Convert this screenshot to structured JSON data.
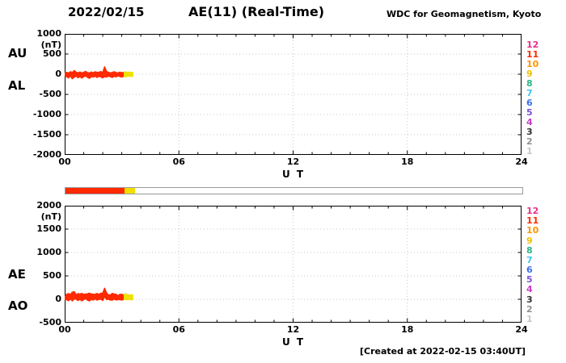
{
  "header": {
    "date": "2022/02/15",
    "title": "AE(11) (Real-Time)",
    "source": "WDC for Geomagnetism, Kyoto"
  },
  "footer": {
    "created": "[Created at 2022-02-15 03:40UT]"
  },
  "stations": [
    {
      "label": "12",
      "color": "#e8308a"
    },
    {
      "label": "11",
      "color": "#ff2a00"
    },
    {
      "label": "10",
      "color": "#ff9500"
    },
    {
      "label": "9",
      "color": "#f0c000"
    },
    {
      "label": "8",
      "color": "#2eb488"
    },
    {
      "label": "7",
      "color": "#3cc6f0"
    },
    {
      "label": "6",
      "color": "#3b6ff0"
    },
    {
      "label": "5",
      "color": "#7b52d8"
    },
    {
      "label": "4",
      "color": "#c83cc8"
    },
    {
      "label": "3",
      "color": "#303030"
    },
    {
      "label": "2",
      "color": "#909090"
    },
    {
      "label": "1",
      "color": "#c8c8c8"
    }
  ],
  "status_bar": {
    "total_hours": 24,
    "segments": [
      {
        "start": 0,
        "end": 3.1,
        "color": "#ff2a00"
      },
      {
        "start": 3.1,
        "end": 3.67,
        "color": "#f0e000"
      }
    ]
  },
  "chart_data": [
    {
      "type": "line",
      "panel": "AU / AL indices",
      "left_labels": [
        "AU",
        "AL"
      ],
      "unit": "(nT)",
      "xlabel": "U T",
      "x_ticks": [
        "00",
        "06",
        "12",
        "18",
        "24"
      ],
      "xlim": [
        0,
        24
      ],
      "ylim": [
        -2000,
        1000
      ],
      "y_ticks": [
        1000,
        500,
        0,
        -500,
        -1000,
        -1500,
        -2000
      ],
      "grid": "dotted",
      "recent_color": "#f0e000",
      "recent_from": 3.1,
      "x": [
        0,
        0.1,
        0.2,
        0.3,
        0.4,
        0.5,
        0.6,
        0.7,
        0.8,
        0.9,
        1.0,
        1.1,
        1.2,
        1.3,
        1.4,
        1.5,
        1.6,
        1.7,
        1.8,
        1.9,
        2.0,
        2.1,
        2.2,
        2.3,
        2.4,
        2.5,
        2.6,
        2.7,
        2.8,
        2.9,
        3.0,
        3.1,
        3.2,
        3.3,
        3.4,
        3.5,
        3.6
      ],
      "series": [
        {
          "name": "AU",
          "color": "#ff2a00",
          "values": [
            20,
            45,
            30,
            60,
            40,
            90,
            50,
            35,
            55,
            30,
            45,
            70,
            40,
            30,
            55,
            35,
            60,
            45,
            50,
            65,
            40,
            180,
            60,
            50,
            30,
            45,
            60,
            40,
            30,
            50,
            35,
            45,
            55,
            40,
            50,
            35,
            45
          ]
        },
        {
          "name": "AL",
          "color": "#ff2a00",
          "values": [
            -25,
            -60,
            -90,
            -40,
            -110,
            -70,
            -45,
            -85,
            -55,
            -95,
            -60,
            -40,
            -75,
            -100,
            -55,
            -70,
            -45,
            -80,
            -50,
            -65,
            -90,
            -55,
            -70,
            -45,
            -60,
            -80,
            -50,
            -65,
            -40,
            -55,
            -70,
            -45,
            -60,
            -50,
            -40,
            -55,
            -45
          ]
        }
      ]
    },
    {
      "type": "line",
      "panel": "AE / AO indices",
      "left_labels": [
        "AE",
        "AO"
      ],
      "unit": "(nT)",
      "xlabel": "U T",
      "x_ticks": [
        "00",
        "06",
        "12",
        "18",
        "24"
      ],
      "xlim": [
        0,
        24
      ],
      "ylim": [
        -500,
        2000
      ],
      "y_ticks": [
        2000,
        1500,
        1000,
        500,
        0,
        -500
      ],
      "grid": "dotted",
      "recent_color": "#f0e000",
      "recent_from": 3.1,
      "x": [
        0,
        0.1,
        0.2,
        0.3,
        0.4,
        0.5,
        0.6,
        0.7,
        0.8,
        0.9,
        1.0,
        1.1,
        1.2,
        1.3,
        1.4,
        1.5,
        1.6,
        1.7,
        1.8,
        1.9,
        2.0,
        2.1,
        2.2,
        2.3,
        2.4,
        2.5,
        2.6,
        2.7,
        2.8,
        2.9,
        3.0,
        3.1,
        3.2,
        3.3,
        3.4,
        3.5,
        3.6
      ],
      "series": [
        {
          "name": "AE",
          "color": "#ff2a00",
          "values": [
            45,
            105,
            120,
            100,
            150,
            160,
            95,
            120,
            110,
            125,
            105,
            110,
            115,
            130,
            110,
            105,
            105,
            125,
            100,
            130,
            130,
            235,
            130,
            95,
            90,
            125,
            110,
            105,
            70,
            105,
            105,
            90,
            115,
            90,
            90,
            90,
            90
          ]
        },
        {
          "name": "AO",
          "color": "#ff2a00",
          "values": [
            -3,
            -8,
            -30,
            10,
            -35,
            10,
            3,
            -25,
            0,
            -33,
            -8,
            15,
            -18,
            -35,
            0,
            -18,
            8,
            -18,
            0,
            0,
            -25,
            63,
            -5,
            3,
            -15,
            -18,
            5,
            -13,
            -5,
            -3,
            -18,
            0,
            -3,
            -5,
            5,
            -10,
            0
          ]
        }
      ]
    }
  ]
}
